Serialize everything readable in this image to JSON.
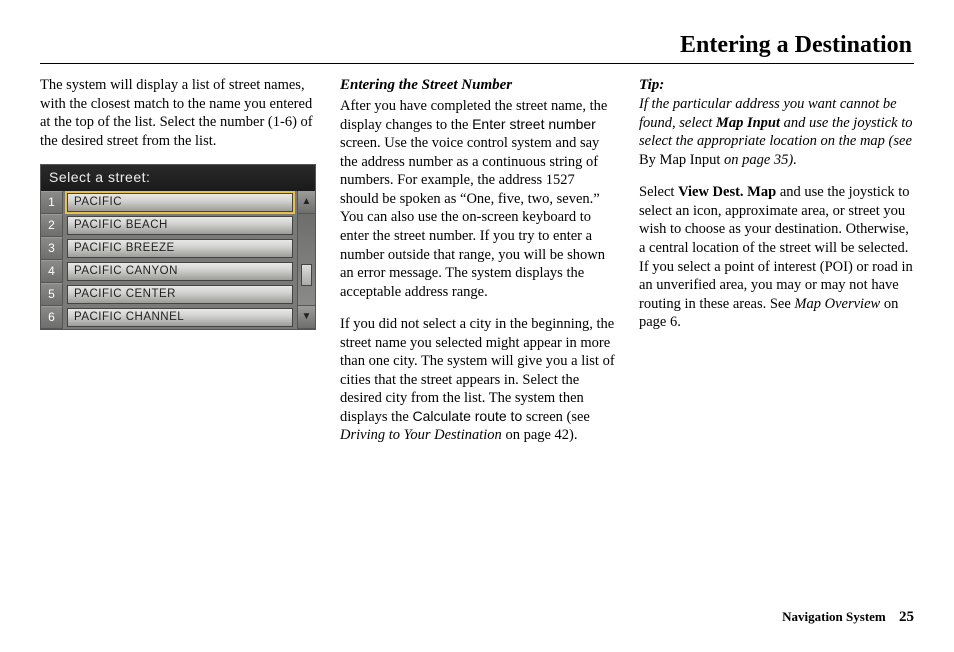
{
  "page_title": "Entering a Destination",
  "footer_label": "Navigation System",
  "footer_page": "25",
  "col1": {
    "intro": "The system will display a list of street names, with the closest match to the name you entered at the top of the list. Select the number (1-6) of the desired street from the list."
  },
  "device": {
    "header": "Select a street:",
    "rows": [
      {
        "n": "1",
        "label": "PACIFIC",
        "selected": true
      },
      {
        "n": "2",
        "label": "PACIFIC BEACH",
        "selected": false
      },
      {
        "n": "3",
        "label": "PACIFIC BREEZE",
        "selected": false
      },
      {
        "n": "4",
        "label": "PACIFIC CANYON",
        "selected": false
      },
      {
        "n": "5",
        "label": "PACIFIC CENTER",
        "selected": false
      },
      {
        "n": "6",
        "label": "PACIFIC CHANNEL",
        "selected": false
      }
    ],
    "arrow_up": "▲",
    "arrow_down": "▼"
  },
  "col2": {
    "subhead": "Entering the Street Number",
    "p1_a": "After you have completed the street name, the display changes to the ",
    "p1_sans": "Enter street number",
    "p1_b": " screen. Use the voice control system and say the address number as a continuous string of numbers. For example, the address 1527 should be spoken as “One, five, two, seven.” You can also use the on-screen keyboard to enter the street number. If you try to enter a number outside that range, you will be shown an error message. The system displays the acceptable address range.",
    "p2_a": "If you did not select a city in the beginning, the street name you selected might appear in more than one city. The system will give you a list of cities that the street appears in. Select the desired city from the list. The system then displays the ",
    "p2_sans": "Calculate route to",
    "p2_b": " screen (see ",
    "p2_ital": "Driving to Your Destination",
    "p2_c": " on page 42)."
  },
  "col3": {
    "tip_label": "Tip:",
    "tip_a": "If the particular address you want cannot be found, select ",
    "tip_bold": "Map Input",
    "tip_b": " and use the joystick to select the appropriate location on the map (see ",
    "tip_plain": "By Map Input",
    "tip_c": " on page 35).",
    "p1_a": "Select ",
    "p1_bold": "View Dest. Map",
    "p1_b": " and use the joystick to select an icon, approximate area, or street you wish to choose as your destination. Otherwise, a central location of the street will be selected. If you select a point of interest (POI) or road in an unverified area, you may or may not have routing in these areas. See ",
    "p1_ital": "Map Overview",
    "p1_c": " on page 6."
  }
}
